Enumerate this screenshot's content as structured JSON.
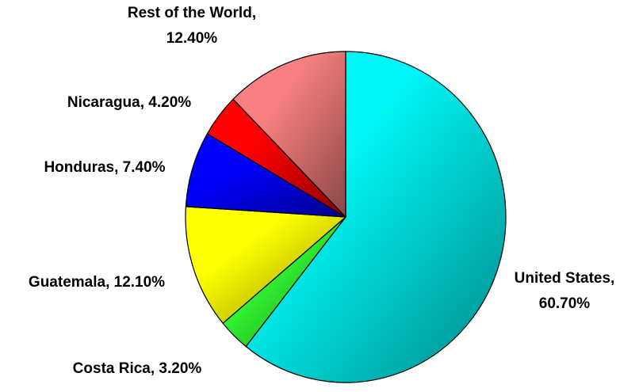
{
  "chart_data": {
    "type": "pie",
    "categories": [
      "United States",
      "Costa Rica",
      "Guatemala",
      "Honduras",
      "Nicaragua",
      "Rest of the World"
    ],
    "values": [
      60.7,
      3.2,
      12.1,
      7.4,
      4.2,
      12.4
    ],
    "value_labels": [
      "United States, 60.70%",
      "Costa Rica, 3.20%",
      "Guatemala, 12.10%",
      "Honduras, 7.40%",
      "Nicaragua, 4.20%",
      "Rest of the World, 12.40%"
    ],
    "colors": [
      "#00f6f6",
      "#33ff33",
      "#ffff00",
      "#0000ff",
      "#ff0000",
      "#f88080"
    ]
  }
}
